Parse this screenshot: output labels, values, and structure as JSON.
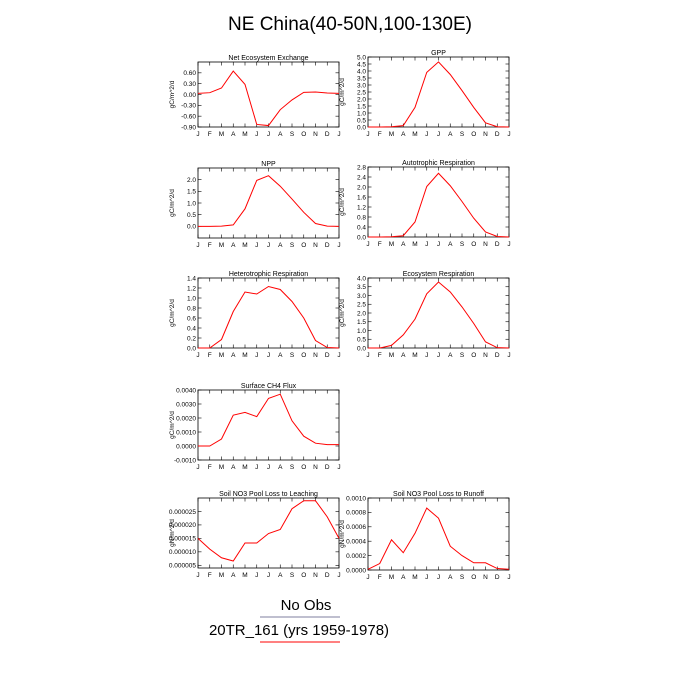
{
  "title": "NE China(40-50N,100-130E)",
  "months": [
    "J",
    "F",
    "M",
    "A",
    "M",
    "J",
    "J",
    "A",
    "S",
    "O",
    "N",
    "D",
    "J"
  ],
  "legend": [
    {
      "label": "No Obs",
      "color": "#7f7f9f"
    },
    {
      "label": "20TR_161 (yrs 1959-1978)",
      "color": "#ff0000"
    }
  ],
  "chart_data": [
    {
      "type": "line",
      "title": "Net Ecosystem Exchange",
      "ylabel": "gC/m^2/d",
      "ylim": [
        -0.9,
        0.9
      ],
      "yticks": [
        -0.9,
        -0.6,
        -0.3,
        0.0,
        0.3,
        0.6
      ],
      "ytick_labels": [
        "-0.90",
        "-0.60",
        "-0.30",
        "0.00",
        "0.30",
        "0.60"
      ],
      "series": [
        {
          "color": "#ff0000",
          "values": [
            0.03,
            0.05,
            0.18,
            0.65,
            0.28,
            -0.83,
            -0.86,
            -0.42,
            -0.15,
            0.06,
            0.07,
            0.04,
            0.03
          ]
        }
      ]
    },
    {
      "type": "line",
      "title": "GPP",
      "ylabel": "gC/m^2/d",
      "ylim": [
        0,
        5
      ],
      "yticks": [
        0,
        0.5,
        1,
        1.5,
        2,
        2.5,
        3,
        3.5,
        4,
        4.5,
        5
      ],
      "ytick_labels": [
        "0.0",
        "0.5",
        "1.0",
        "1.5",
        "2.0",
        "2.5",
        "3.0",
        "3.5",
        "4.0",
        "4.5",
        "5.0"
      ],
      "series": [
        {
          "color": "#ff0000",
          "values": [
            0,
            0,
            0.02,
            0.1,
            1.4,
            3.9,
            4.65,
            3.75,
            2.6,
            1.4,
            0.3,
            0.02,
            0
          ]
        }
      ]
    },
    {
      "type": "line",
      "title": "NPP",
      "ylabel": "gC/m^2/d",
      "ylim": [
        -0.5,
        2.5
      ],
      "yticks": [
        0,
        0.5,
        1,
        1.5,
        2
      ],
      "ytick_labels": [
        "0.0",
        "0.5",
        "1.0",
        "1.5",
        "2.0"
      ],
      "series": [
        {
          "color": "#ff0000",
          "values": [
            0,
            0,
            0.01,
            0.06,
            0.75,
            1.97,
            2.17,
            1.72,
            1.17,
            0.6,
            0.12,
            0.01,
            0
          ]
        }
      ]
    },
    {
      "type": "line",
      "title": "Autotrophic Respiration",
      "ylabel": "gC/m^2/d",
      "ylim": [
        0,
        2.8
      ],
      "yticks": [
        0,
        0.4,
        0.8,
        1.2,
        1.6,
        2.0,
        2.4,
        2.8
      ],
      "ytick_labels": [
        "0.0",
        "0.4",
        "0.8",
        "1.2",
        "1.6",
        "2.0",
        "2.4",
        "2.8"
      ],
      "series": [
        {
          "color": "#ff0000",
          "values": [
            0,
            0,
            0.01,
            0.05,
            0.6,
            2.02,
            2.55,
            2.05,
            1.42,
            0.75,
            0.2,
            0.02,
            0
          ]
        }
      ]
    },
    {
      "type": "line",
      "title": "Heterotrophic Respiration",
      "ylabel": "gC/m^2/d",
      "ylim": [
        0,
        1.4
      ],
      "yticks": [
        0,
        0.2,
        0.4,
        0.6,
        0.8,
        1.0,
        1.2,
        1.4
      ],
      "ytick_labels": [
        "0.0",
        "0.2",
        "0.4",
        "0.6",
        "0.8",
        "1.0",
        "1.2",
        "1.4"
      ],
      "series": [
        {
          "color": "#ff0000",
          "values": [
            0,
            0,
            0.17,
            0.73,
            1.12,
            1.08,
            1.23,
            1.17,
            0.93,
            0.6,
            0.15,
            0.01,
            0
          ]
        }
      ]
    },
    {
      "type": "line",
      "title": "Ecosystem Respiration",
      "ylabel": "gC/m^2/d",
      "ylim": [
        0,
        4
      ],
      "yticks": [
        0,
        0.5,
        1,
        1.5,
        2,
        2.5,
        3,
        3.5,
        4
      ],
      "ytick_labels": [
        "0.0",
        "0.5",
        "1.0",
        "1.5",
        "2.0",
        "2.5",
        "3.0",
        "3.5",
        "4.0"
      ],
      "series": [
        {
          "color": "#ff0000",
          "values": [
            0,
            0,
            0.15,
            0.75,
            1.65,
            3.1,
            3.77,
            3.2,
            2.35,
            1.4,
            0.35,
            0.02,
            0
          ]
        }
      ]
    },
    {
      "type": "line",
      "title": "Surface CH4 Flux",
      "ylabel": "gC/m^2/d",
      "ylim": [
        -0.001,
        0.004
      ],
      "yticks": [
        -0.001,
        0,
        0.001,
        0.002,
        0.003,
        0.004
      ],
      "ytick_labels": [
        "-0.0010",
        "0.0000",
        "0.0010",
        "0.0020",
        "0.0030",
        "0.0040"
      ],
      "series": [
        {
          "color": "#ff0000",
          "values": [
            0.0,
            0.0,
            0.0005,
            0.0022,
            0.0024,
            0.0021,
            0.0034,
            0.0037,
            0.0018,
            0.0007,
            0.0002,
            0.0001,
            0.0001
          ]
        }
      ]
    },
    {
      "type": "line",
      "title": "Soil NO3 Pool Loss to Leaching",
      "ylabel": "gN/m^2/d",
      "ylim": [
        4e-06,
        3e-05
      ],
      "yticks": [
        5e-06,
        1e-05,
        1.5e-05,
        2e-05,
        2.5e-05
      ],
      "ytick_labels": [
        "0.000005",
        "0.000010",
        "0.000015",
        "0.000020",
        "0.000025"
      ],
      "series": [
        {
          "color": "#ff0000",
          "values": [
            1.5e-05,
            1.1e-05,
            7.8e-06,
            6.6e-06,
            1.33e-05,
            1.33e-05,
            1.68e-05,
            1.83e-05,
            2.6e-05,
            2.9e-05,
            2.9e-05,
            2.3e-05,
            1.5e-05
          ]
        }
      ]
    },
    {
      "type": "line",
      "title": "Soil NO3 Pool Loss to Runoff",
      "ylabel": "gN/m^2/d",
      "ylim": [
        0,
        0.001
      ],
      "yticks": [
        0,
        0.0002,
        0.0004,
        0.0006,
        0.0008,
        0.001
      ],
      "ytick_labels": [
        "0.0000",
        "0.0002",
        "0.0004",
        "0.0006",
        "0.0008",
        "0.0010"
      ],
      "series": [
        {
          "color": "#ff0000",
          "values": [
            1e-05,
            9e-05,
            0.00042,
            0.00024,
            0.00051,
            0.00086,
            0.00072,
            0.00033,
            0.0002,
            0.0001,
            0.0001,
            2e-05,
            1e-05
          ]
        }
      ]
    }
  ]
}
